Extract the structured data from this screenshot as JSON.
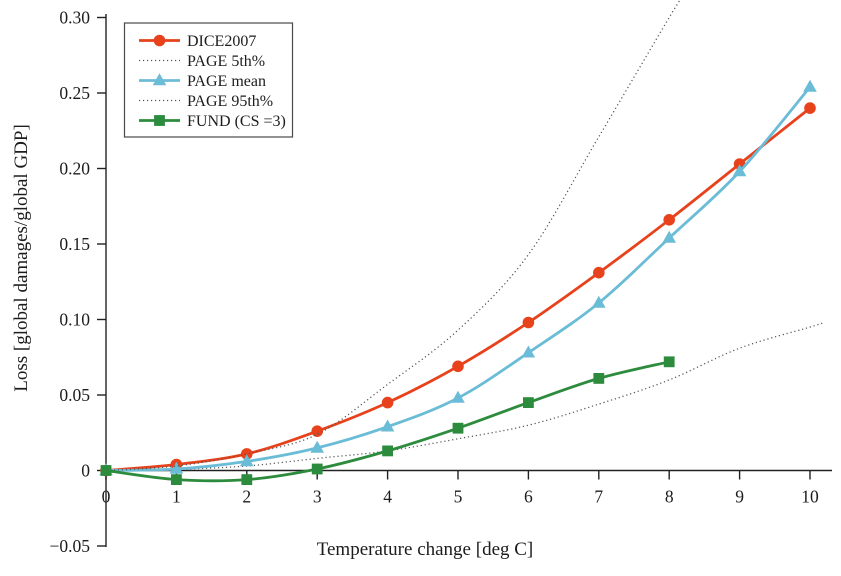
{
  "chart_data": {
    "type": "line",
    "title": "",
    "xlabel": "Temperature change [deg C]",
    "ylabel": "Loss [global damages/global GDP]",
    "xlim": [
      0,
      10.3
    ],
    "ylim": [
      -0.05,
      0.3
    ],
    "x_ticks": [
      "0",
      "1",
      "2",
      "3",
      "4",
      "5",
      "6",
      "7",
      "8",
      "9",
      "10"
    ],
    "x_tick_values": [
      0,
      1,
      2,
      3,
      4,
      5,
      6,
      7,
      8,
      9,
      10
    ],
    "y_ticks": [
      "−0.05",
      "0",
      "0.05",
      "0.10",
      "0.15",
      "0.20",
      "0.25",
      "0.30"
    ],
    "y_tick_values": [
      -0.05,
      0,
      0.05,
      0.1,
      0.15,
      0.2,
      0.25,
      0.3
    ],
    "grid": false,
    "legend_position": "upper-left",
    "series": [
      {
        "name": "DICE2007",
        "color": "#e8421c",
        "line": "solid",
        "marker": "circle",
        "x": [
          0,
          1,
          2,
          3,
          4,
          5,
          6,
          7,
          8,
          9,
          10
        ],
        "y": [
          0,
          0.004,
          0.011,
          0.026,
          0.045,
          0.069,
          0.098,
          0.131,
          0.166,
          0.203,
          0.24
        ]
      },
      {
        "name": "PAGE 5th%",
        "color": "#555555",
        "line": "dotted",
        "marker": "none",
        "x": [
          0,
          1,
          2,
          3,
          4,
          5,
          6,
          7,
          8,
          9,
          10,
          10.2
        ],
        "y": [
          0,
          0.0008,
          0.003,
          0.008,
          0.013,
          0.021,
          0.03,
          0.044,
          0.06,
          0.081,
          0.095,
          0.098
        ]
      },
      {
        "name": "PAGE mean",
        "color": "#6bbcd6",
        "line": "solid",
        "marker": "triangle",
        "x": [
          0,
          1,
          2,
          3,
          4,
          5,
          6,
          7,
          8,
          9,
          10
        ],
        "y": [
          0,
          0.001,
          0.006,
          0.015,
          0.029,
          0.048,
          0.078,
          0.111,
          0.154,
          0.198,
          0.254
        ]
      },
      {
        "name": "PAGE 95th%",
        "color": "#555555",
        "line": "dotted",
        "marker": "none",
        "x": [
          0,
          1,
          2,
          3,
          4,
          5,
          6,
          7,
          8,
          8.3
        ],
        "y": [
          0,
          0.003,
          0.011,
          0.024,
          0.057,
          0.093,
          0.143,
          0.221,
          0.3,
          0.322
        ]
      },
      {
        "name": "FUND (CS =3)",
        "color": "#2c8b3c",
        "line": "solid",
        "marker": "square",
        "x": [
          0,
          1,
          2,
          3,
          4,
          5,
          6,
          7,
          8
        ],
        "y": [
          0,
          -0.006,
          -0.006,
          0.001,
          0.013,
          0.028,
          0.045,
          0.061,
          0.072
        ]
      }
    ]
  }
}
